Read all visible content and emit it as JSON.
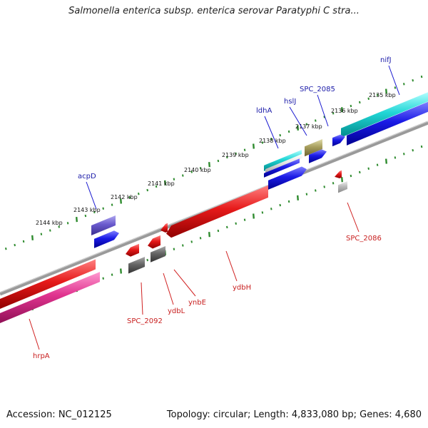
{
  "title": "Salmonella enterica subsp. enterica serovar Paratyphi C stra...",
  "footer": {
    "accession": "Accession: NC_012125",
    "summary": "Topology: circular; Length: 4,833,080 bp; Genes: 4,680"
  },
  "colors": {
    "backbone": "#808080",
    "tick": "#2e8b2e",
    "forward_label": "#1a1aa8",
    "reverse_label": "#c81e1e",
    "forward_gene": "#1818e0",
    "reverse_gene": "#e01818"
  },
  "scale_labels": [
    "2135 kbp",
    "2136 kbp",
    "2137 kbp",
    "2138 kbp",
    "2139 kbp",
    "2140 kbp",
    "2141 kbp",
    "2142 kbp",
    "2143 kbp",
    "2144 kbp"
  ],
  "forward_genes": [
    {
      "label": "nifJ",
      "color": "#1818e0",
      "feature": "cds"
    },
    {
      "label": "SPC_2085",
      "color": "#1818e0",
      "feature": "cds"
    },
    {
      "label": "hslJ",
      "color": "#1818e0",
      "feature": "cds"
    },
    {
      "label": "ldhA",
      "color": "#1818e0",
      "feature": "cds"
    },
    {
      "label": "acpD",
      "color": "#1818e0",
      "feature": "cds"
    }
  ],
  "reverse_genes": [
    {
      "label": "SPC_2086",
      "color": "#e01818",
      "feature": "cds"
    },
    {
      "label": "ydbH",
      "color": "#e01818",
      "feature": "cds"
    },
    {
      "label": "ynbE",
      "color": "#e01818",
      "feature": "cds"
    },
    {
      "label": "ydbL",
      "color": "#e01818",
      "feature": "cds"
    },
    {
      "label": "SPC_2092",
      "color": "#e01818",
      "feature": "cds"
    },
    {
      "label": "hrpA",
      "color": "#e01818",
      "feature": "cds"
    }
  ]
}
